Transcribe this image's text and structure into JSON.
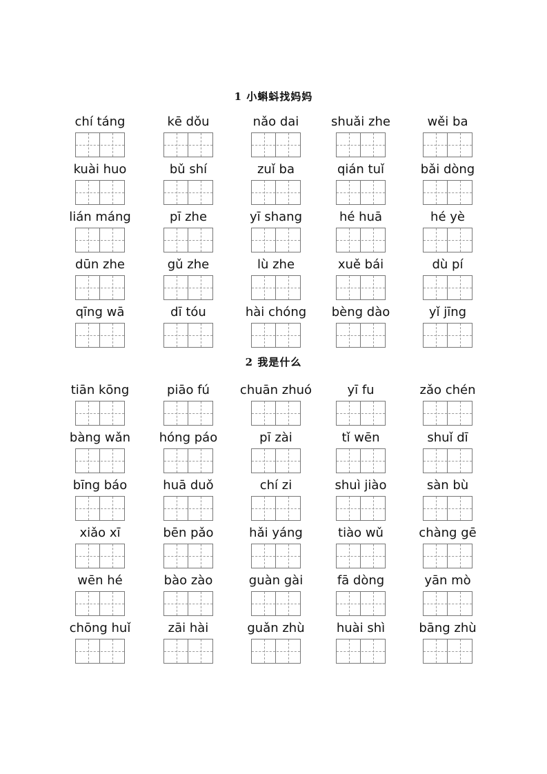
{
  "sections": [
    {
      "title": "1 小蝌蚪找妈妈",
      "words": [
        [
          "chí táng",
          "kē dǒu",
          "nǎo dai",
          "shuǎi zhe",
          "wěi ba"
        ],
        [
          "kuài huo",
          "bǔ shí",
          "zuǐ ba",
          "qián tuǐ",
          "bǎi dòng"
        ],
        [
          "lián máng",
          "pī zhe",
          "yī shang",
          "hé huā",
          "hé yè"
        ],
        [
          "dūn zhe",
          "gǔ zhe",
          "lù zhe",
          "xuě bái",
          "dù pí"
        ],
        [
          "qīng  wā",
          "dī tóu",
          "hài chóng",
          "bèng  dào",
          "yǐ jīng"
        ]
      ]
    },
    {
      "title": "2 我是什么",
      "words": [
        [
          "tiān kōng",
          "piāo fú",
          "chuān zhuó",
          "yī fu",
          "zǎo chén"
        ],
        [
          "bàng  wǎn",
          "hóng  páo",
          "pī zài",
          "tǐ wēn",
          "shuǐ dī"
        ],
        [
          "bīng  báo",
          "huā duǒ",
          "chí zi",
          "shuì jiào",
          "sàn bù"
        ],
        [
          "xiǎo xī",
          "bēn pǎo",
          "hǎi yáng",
          "tiào wǔ",
          "chàng  gē"
        ],
        [
          "wēn hé",
          "bào zào",
          "guàn  gài",
          "fā dòng",
          "yān mò"
        ],
        [
          "chōng  huǐ",
          "zāi hài",
          "guǎn zhù",
          "huài shì",
          "bāng  zhù"
        ]
      ]
    }
  ]
}
